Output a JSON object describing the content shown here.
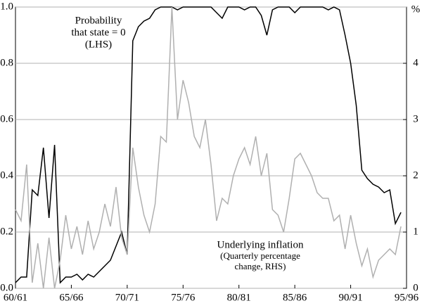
{
  "chart_data": {
    "type": "line",
    "annotations": [
      [
        "Probability",
        "that state = 0",
        "(LHS)"
      ],
      [
        "Underlying inflation",
        "(Quarterly percentage",
        "change, RHS)"
      ]
    ],
    "y2label": "%",
    "x": [
      1960,
      1960.5,
      1961,
      1961.5,
      1962,
      1962.5,
      1963,
      1963.5,
      1964,
      1964.5,
      1965,
      1965.5,
      1966,
      1966.5,
      1967,
      1967.5,
      1968,
      1968.5,
      1969,
      1969.5,
      1970,
      1970.5,
      1971,
      1971.5,
      1972,
      1972.5,
      1973,
      1973.5,
      1974,
      1974.5,
      1975,
      1975.5,
      1976,
      1976.5,
      1977,
      1977.5,
      1978,
      1978.5,
      1979,
      1979.5,
      1980,
      1980.5,
      1981,
      1981.5,
      1982,
      1982.5,
      1983,
      1983.5,
      1984,
      1984.5,
      1985,
      1985.5,
      1986,
      1986.5,
      1987,
      1987.5,
      1988,
      1988.5,
      1989,
      1989.5,
      1990,
      1990.5,
      1991,
      1991.5,
      1992,
      1992.5,
      1993,
      1993.5,
      1994,
      1994.5
    ],
    "series": [
      {
        "color": "#000000",
        "axis": "y",
        "values": [
          0.02,
          0.04,
          0.04,
          0.35,
          0.33,
          0.5,
          0.25,
          0.51,
          0.02,
          0.04,
          0.04,
          0.05,
          0.03,
          0.05,
          0.04,
          0.06,
          0.08,
          0.1,
          0.15,
          0.2,
          0.12,
          0.88,
          0.93,
          0.95,
          0.96,
          0.99,
          1.0,
          1.0,
          1.0,
          0.99,
          1.0,
          1.0,
          1.0,
          1.0,
          1.0,
          1.0,
          0.98,
          0.96,
          1.0,
          1.0,
          1.0,
          0.99,
          1.0,
          1.0,
          0.97,
          0.9,
          0.99,
          1.0,
          1.0,
          1.0,
          0.98,
          1.0,
          1.0,
          1.0,
          1.0,
          1.0,
          0.99,
          1.0,
          0.99,
          0.9,
          0.8,
          0.65,
          0.42,
          0.39,
          0.37,
          0.36,
          0.34,
          0.35,
          0.23,
          0.27
        ]
      },
      {
        "color": "#b0b0b0",
        "axis": "y2",
        "values": [
          1.4,
          1.2,
          2.2,
          0.1,
          0.8,
          0,
          0.9,
          0,
          0.5,
          1.3,
          0.7,
          1.1,
          0.6,
          1.2,
          0.7,
          1.0,
          1.5,
          1.1,
          1.8,
          0.9,
          0.6,
          2.5,
          1.8,
          1.3,
          1.0,
          1.5,
          2.7,
          2.6,
          5.0,
          3.0,
          3.7,
          3.3,
          2.7,
          2.5,
          3.0,
          2.2,
          1.2,
          1.6,
          1.5,
          2.0,
          2.3,
          2.5,
          2.2,
          2.7,
          2.0,
          2.4,
          1.4,
          1.3,
          1.0,
          1.6,
          2.3,
          2.4,
          2.2,
          2.0,
          1.7,
          1.6,
          1.6,
          1.2,
          1.3,
          0.7,
          1.3,
          0.8,
          0.4,
          0.7,
          0.2,
          0.5,
          0.6,
          0.7,
          0.6,
          1.1
        ]
      }
    ],
    "xlim": [
      1960,
      1995
    ],
    "xticks": [
      {
        "value": 1960,
        "label": "60/61"
      },
      {
        "value": 1965,
        "label": "65/66"
      },
      {
        "value": 1970,
        "label": "70/71"
      },
      {
        "value": 1975,
        "label": "75/76"
      },
      {
        "value": 1980,
        "label": "80/81"
      },
      {
        "value": 1985,
        "label": "85/86"
      },
      {
        "value": 1990,
        "label": "90/91"
      },
      {
        "value": 1995,
        "label": "95/96"
      }
    ],
    "ylim": [
      0,
      1
    ],
    "yticks": [
      {
        "value": 0,
        "label": "0.0"
      },
      0.2,
      0.4,
      0.6,
      0.8,
      {
        "value": 1,
        "label": "1.0"
      }
    ],
    "y2lim": [
      0,
      5
    ],
    "y2ticks": [
      0,
      1,
      2,
      3,
      4
    ],
    "grid": true
  }
}
